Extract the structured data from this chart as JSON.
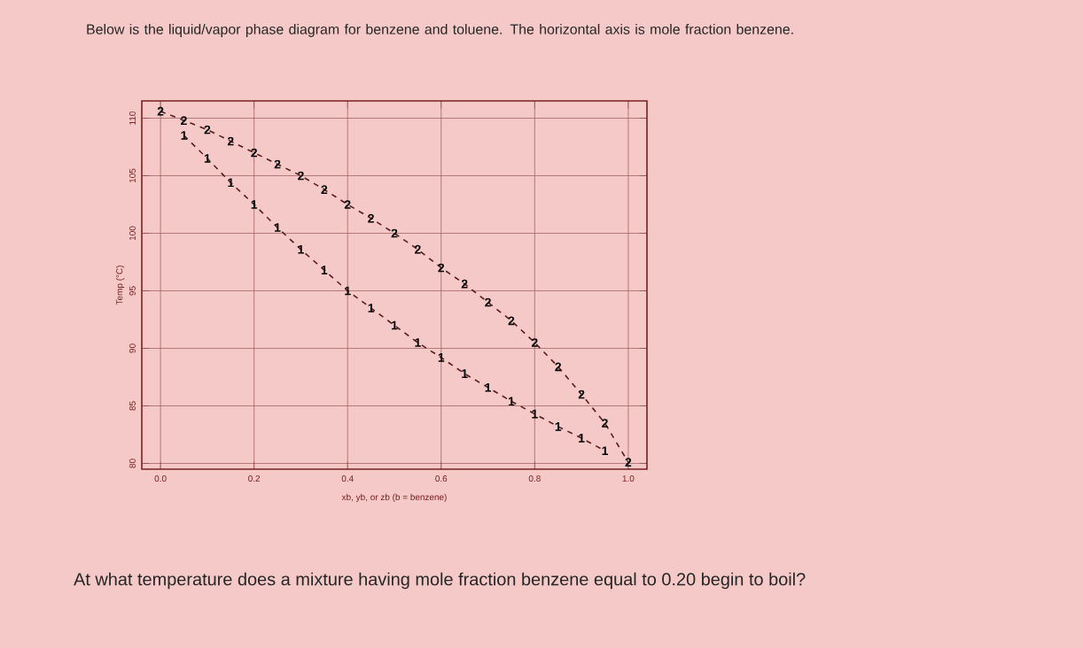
{
  "chart_data": {
    "type": "line",
    "title": "Below is the liquid/vapor phase diagram for benzene and toluene. The horizontal axis is mole fraction benzene.",
    "xlabel": "xb, yb, or zb (b = benzene)",
    "ylabel": "Temp (°C)",
    "annotations": [
      "At what temperature does a mixture having mole fraction benzene equal to 0.20 begin to boil?"
    ],
    "xlim": [
      -0.04,
      1.04
    ],
    "ylim": [
      79.5,
      111.5
    ],
    "xticks": [
      {
        "value": 0,
        "label": "0.0"
      },
      0.2,
      0.4,
      0.6,
      0.8,
      {
        "value": 1,
        "label": "1.0"
      }
    ],
    "yticks": [
      80,
      85,
      90,
      95,
      100,
      105,
      110
    ],
    "grid": true,
    "line_style": "dashed",
    "x": [
      0,
      0.05,
      0.1,
      0.15,
      0.2,
      0.25,
      0.3,
      0.35,
      0.4,
      0.45,
      0.5,
      0.55,
      0.6,
      0.65,
      0.7,
      0.75,
      0.8,
      0.85,
      0.9,
      0.95,
      1
    ],
    "series": [
      {
        "name": "1",
        "color": "#5a1a1a",
        "values": [
          null,
          108.5,
          106.5,
          104.4,
          102.5,
          100.5,
          98.6,
          96.8,
          95,
          93.5,
          92,
          90.5,
          89.2,
          87.8,
          86.6,
          85.4,
          84.3,
          83.2,
          82.2,
          81.1,
          null
        ]
      },
      {
        "name": "2",
        "color": "#5a1a1a",
        "values": [
          110.6,
          109.8,
          109,
          108,
          107,
          106,
          105,
          103.8,
          102.5,
          101.3,
          100,
          98.6,
          97,
          95.6,
          94,
          92.4,
          90.5,
          88.4,
          86,
          83.5,
          80.1
        ]
      }
    ]
  }
}
